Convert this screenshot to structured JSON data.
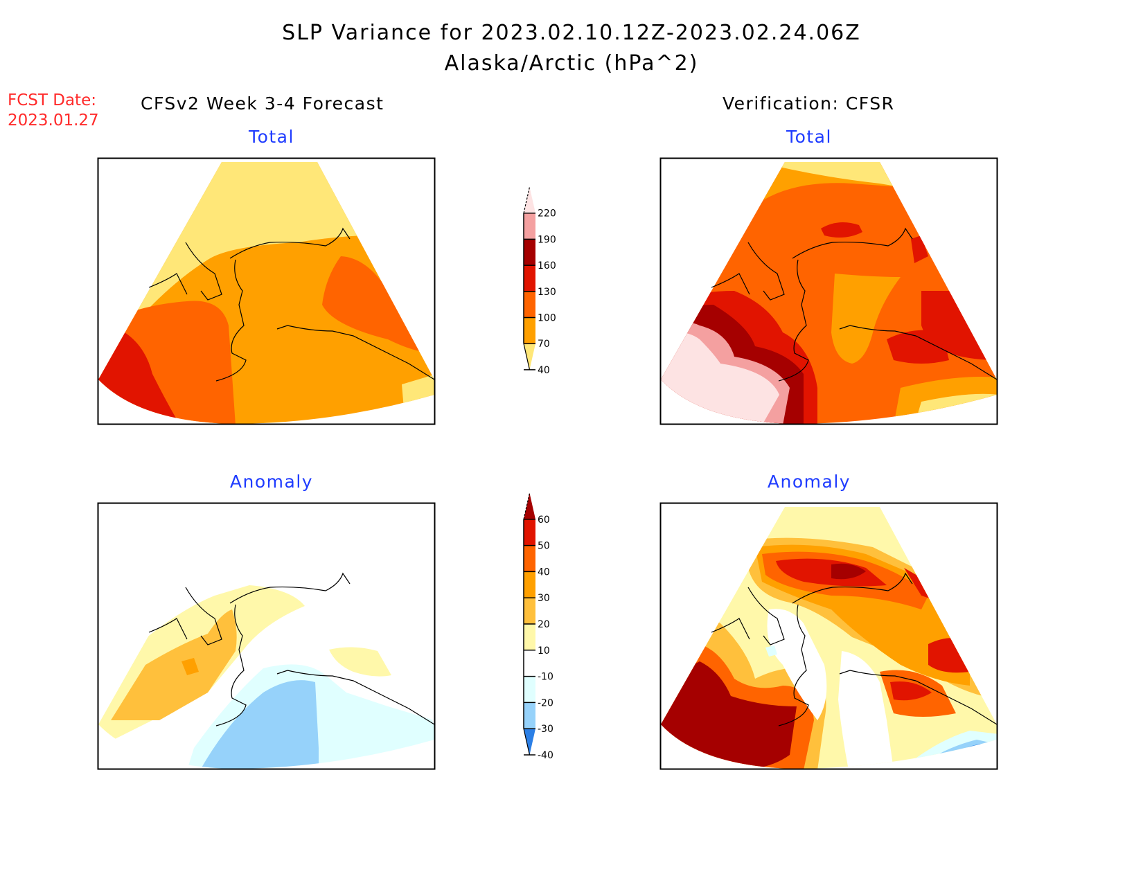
{
  "header": {
    "title": "SLP Variance for 2023.02.10.12Z-2023.02.24.06Z",
    "subtitle": "Alaska/Arctic (hPa^2)",
    "fcst_label": "FCST Date:",
    "fcst_date": "2023.01.27",
    "left_column": "CFSv2 Week 3-4 Forecast",
    "right_column": "Verification: CFSR"
  },
  "panels": [
    {
      "id": "fcst-total",
      "title": "Total"
    },
    {
      "id": "verif-total",
      "title": "Total"
    },
    {
      "id": "fcst-anomaly",
      "title": "Anomaly"
    },
    {
      "id": "verif-anomaly",
      "title": "Anomaly"
    }
  ],
  "colors": {
    "title_blue": "#1f3cff",
    "fcst_red": "#ff2a2a"
  },
  "chart_data": [
    {
      "type": "heatmap",
      "title": "Total",
      "subtitle": "CFSv2 Week 3-4 Forecast",
      "units": "hPa^2",
      "colorbar": {
        "levels": [
          40,
          70,
          100,
          130,
          160,
          190,
          220
        ],
        "tick_labels": [
          "220",
          "190",
          "160",
          "130",
          "100",
          "70",
          "40"
        ],
        "colors": [
          "#ffe778",
          "#ffa000",
          "#ff6400",
          "#e11400",
          "#a50000",
          "#f4a0a0",
          "#fde3e3"
        ],
        "extend": "both"
      },
      "region": "Alaska/Arctic",
      "dominant_range": "70-100 over mainland Alaska, 100-160 over Bering Sea/Siberia, 40-70 over Arctic Ocean"
    },
    {
      "type": "heatmap",
      "title": "Total",
      "subtitle": "Verification: CFSR",
      "units": "hPa^2",
      "colorbar_shared_with": "CFSv2 Week 3-4 Forecast Total",
      "region": "Alaska/Arctic",
      "dominant_range": "100-130 broadly, >190 over western Bering Sea, 160-190 band near Aleutians"
    },
    {
      "type": "heatmap",
      "title": "Anomaly",
      "subtitle": "CFSv2 Week 3-4 Forecast",
      "units": "hPa^2",
      "colorbar": {
        "levels": [
          -40,
          -30,
          -20,
          -10,
          10,
          20,
          30,
          40,
          50,
          60
        ],
        "tick_labels": [
          "60",
          "50",
          "40",
          "30",
          "20",
          "10",
          "-10",
          "-20",
          "-30",
          "-40"
        ],
        "colors": [
          "#2b7fe6",
          "#96d2fa",
          "#e0ffff",
          "#ffffff",
          "#fff8aa",
          "#ffc03c",
          "#ffa000",
          "#ff6400",
          "#e11400",
          "#a50000"
        ],
        "extend": "both"
      },
      "region": "Alaska/Arctic",
      "dominant_range": "10-40 over Bering Strait/Siberia, -10 to -30 over Gulf of Alaska"
    },
    {
      "type": "heatmap",
      "title": "Anomaly",
      "subtitle": "Verification: CFSR",
      "units": "hPa^2",
      "colorbar_shared_with": "CFSv2 Week 3-4 Forecast Anomaly",
      "region": "Alaska/Arctic",
      "dominant_range": ">60 over western Bering Sea and Arctic, -20 to -40 off Pacific Northwest"
    }
  ]
}
